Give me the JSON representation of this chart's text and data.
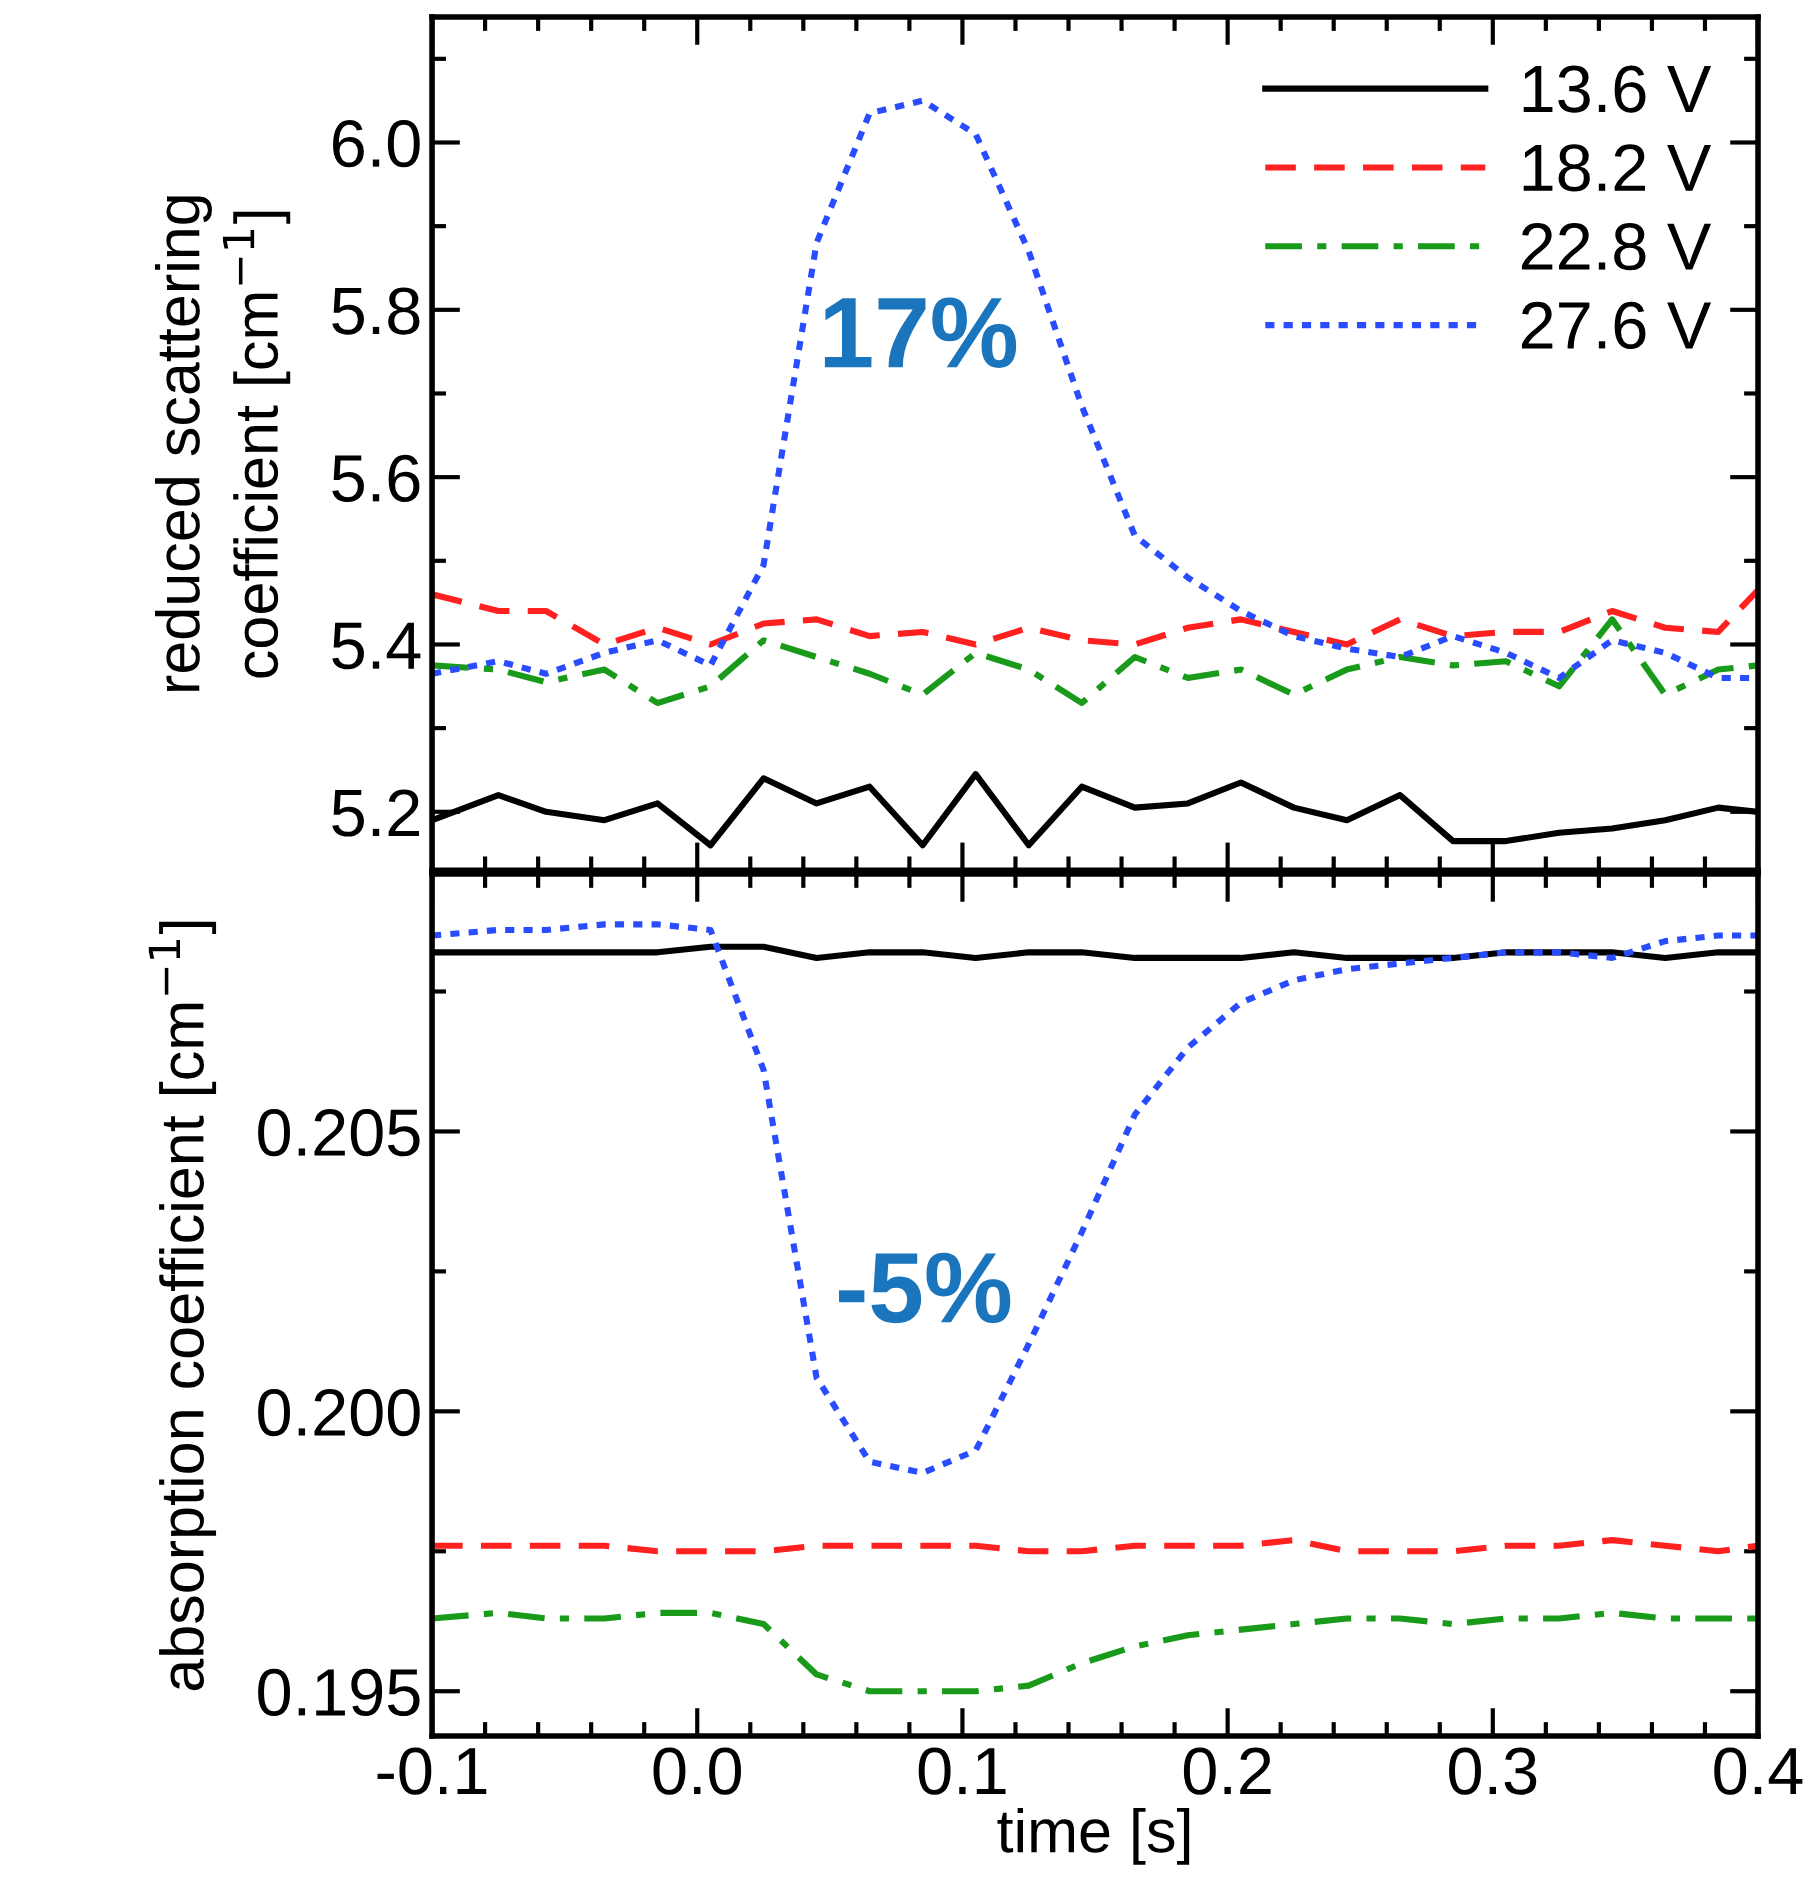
{
  "chart_data": [
    {
      "type": "line",
      "ylabel": "reduced scattering\ncoefficient [cm$^{−1}$]",
      "tick_labels": "y",
      "legend": "top right",
      "x": [
        -0.1,
        -0.075,
        -0.057,
        -0.035,
        -0.015,
        0.005,
        0.025,
        0.045,
        0.065,
        0.085,
        0.105,
        0.125,
        0.145,
        0.165,
        0.185,
        0.205,
        0.225,
        0.245,
        0.265,
        0.285,
        0.305,
        0.325,
        0.345,
        0.365,
        0.385,
        0.4
      ],
      "xlim": [
        -0.1,
        0.4
      ],
      "xticks": [
        -0.1,
        0.0,
        0.1,
        0.2,
        0.3,
        0.4
      ],
      "ylim": [
        5.13,
        6.15
      ],
      "yticks": [
        5.2,
        5.4,
        5.6,
        5.8,
        {
          "value": 6.0,
          "label": "6.0"
        }
      ],
      "annotations": [
        "17%"
      ],
      "series": [
        {
          "name": "13.6 V",
          "color": "#000000",
          "line_style": "solid",
          "values": [
            5.19,
            5.22,
            5.2,
            5.19,
            5.21,
            5.16,
            5.24,
            5.21,
            5.23,
            5.16,
            5.245,
            5.16,
            5.23,
            5.205,
            5.21,
            5.235,
            5.205,
            5.19,
            5.22,
            5.165,
            5.165,
            5.175,
            5.18,
            5.19,
            5.205,
            5.2
          ]
        },
        {
          "name": "18.2 V",
          "color": "#ff2020",
          "line_style": "dashed",
          "values": [
            5.46,
            5.44,
            5.44,
            5.4,
            5.42,
            5.4,
            5.425,
            5.43,
            5.41,
            5.415,
            5.4,
            5.42,
            5.405,
            5.4,
            5.42,
            5.43,
            5.415,
            5.4,
            5.43,
            5.41,
            5.415,
            5.415,
            5.44,
            5.42,
            5.415,
            5.465
          ]
        },
        {
          "name": "22.8 V",
          "color": "#1a9a1a",
          "line_style": "dashdot",
          "values": [
            5.375,
            5.37,
            5.355,
            5.37,
            5.33,
            5.35,
            5.405,
            5.385,
            5.365,
            5.34,
            5.39,
            5.37,
            5.33,
            5.385,
            5.36,
            5.37,
            5.34,
            5.37,
            5.385,
            5.375,
            5.38,
            5.35,
            5.43,
            5.34,
            5.37,
            5.375
          ]
        },
        {
          "name": "27.6 V",
          "color": "#2a4cff",
          "line_style": "dotted",
          "values": [
            5.365,
            5.38,
            5.365,
            5.39,
            5.405,
            5.375,
            5.495,
            5.88,
            6.035,
            6.05,
            6.01,
            5.87,
            5.685,
            5.53,
            5.48,
            5.44,
            5.41,
            5.395,
            5.385,
            5.41,
            5.39,
            5.36,
            5.405,
            5.39,
            5.36,
            5.36
          ]
        }
      ]
    },
    {
      "type": "line",
      "xlabel": "time [s]",
      "ylabel": "absorption coefficient [cm$^{−1}$]",
      "x": [
        -0.1,
        -0.075,
        -0.057,
        -0.035,
        -0.015,
        0.005,
        0.025,
        0.045,
        0.065,
        0.085,
        0.105,
        0.125,
        0.145,
        0.165,
        0.185,
        0.205,
        0.225,
        0.245,
        0.265,
        0.285,
        0.305,
        0.325,
        0.345,
        0.365,
        0.385,
        0.4
      ],
      "xlim": [
        -0.1,
        0.4
      ],
      "xticks": [
        -0.1,
        {
          "value": 0.0,
          "label": "0.0"
        },
        0.1,
        0.2,
        0.3,
        0.4
      ],
      "ylim": [
        0.1942,
        0.2096
      ],
      "yticks": [
        0.195,
        {
          "value": 0.2,
          "label": "0.200"
        },
        0.205
      ],
      "annotations": [
        "-5%"
      ],
      "series": [
        {
          "color": "#000000",
          "line_style": "solid",
          "values": [
            0.2082,
            0.2082,
            0.2082,
            0.2082,
            0.2082,
            0.2083,
            0.2083,
            0.2081,
            0.2082,
            0.2082,
            0.2081,
            0.2082,
            0.2082,
            0.2081,
            0.2081,
            0.2081,
            0.2082,
            0.2081,
            0.2081,
            0.2081,
            0.2082,
            0.2082,
            0.2082,
            0.2081,
            0.2082,
            0.2082
          ]
        },
        {
          "color": "#ff2020",
          "line_style": "dashed",
          "values": [
            0.1976,
            0.1976,
            0.1976,
            0.1976,
            0.1975,
            0.1975,
            0.1975,
            0.1976,
            0.1976,
            0.1976,
            0.1976,
            0.1975,
            0.1975,
            0.1976,
            0.1976,
            0.1976,
            0.1977,
            0.1975,
            0.1975,
            0.1975,
            0.1976,
            0.1976,
            0.1977,
            0.1976,
            0.1975,
            0.1976
          ]
        },
        {
          "color": "#1a9a1a",
          "line_style": "dashdot",
          "values": [
            0.1963,
            0.1964,
            0.1963,
            0.1963,
            0.1964,
            0.1964,
            0.1962,
            0.1953,
            0.195,
            0.195,
            0.195,
            0.1951,
            0.1955,
            0.1958,
            0.196,
            0.1961,
            0.1962,
            0.1963,
            0.1963,
            0.1962,
            0.1963,
            0.1963,
            0.1964,
            0.1963,
            0.1963,
            0.1963
          ]
        },
        {
          "color": "#2a4cff",
          "line_style": "dotted",
          "values": [
            0.2085,
            0.2086,
            0.2086,
            0.2087,
            0.2087,
            0.2086,
            0.2061,
            0.2006,
            0.1991,
            0.1989,
            0.1993,
            0.2012,
            0.2032,
            0.2053,
            0.2065,
            0.2073,
            0.2077,
            0.2079,
            0.208,
            0.2081,
            0.2082,
            0.2082,
            0.2081,
            0.2084,
            0.2085,
            0.2085
          ]
        }
      ]
    }
  ]
}
